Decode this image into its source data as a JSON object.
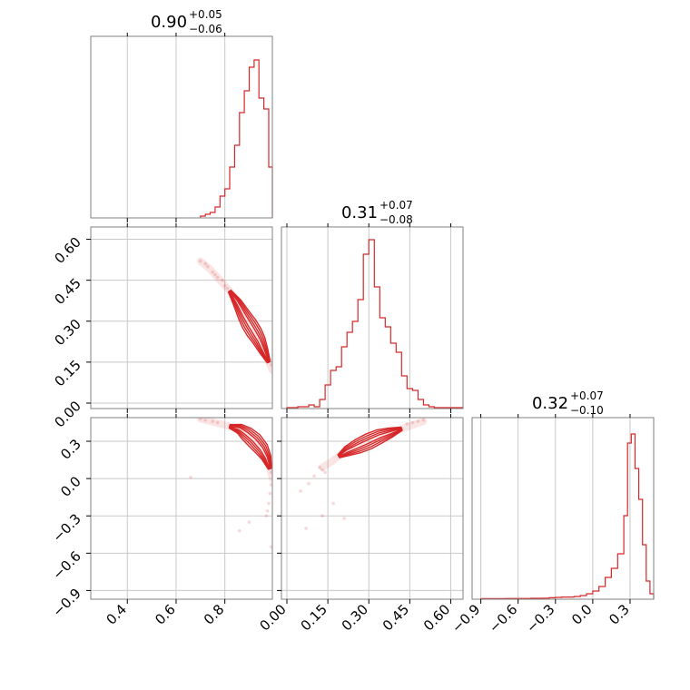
{
  "colors": {
    "series": "#d62728",
    "grid": "#c8c8c8",
    "frame": "#808080"
  },
  "chart_data": {
    "type": "corner",
    "parameters": [
      {
        "median": "0.90",
        "plus": "+0.05",
        "minus": "−0.06",
        "range": [
          0.25,
          0.995
        ],
        "ticks": [
          0.4,
          0.6,
          0.8
        ],
        "tick_labels": [
          "0.4",
          "0.6",
          "0.8"
        ],
        "grid": [
          0.4,
          0.6,
          0.8
        ],
        "hist": {
          "bins": [
            0.7,
            0.72,
            0.74,
            0.76,
            0.78,
            0.8,
            0.82,
            0.84,
            0.86,
            0.88,
            0.9,
            0.92,
            0.94,
            0.96,
            0.98,
            0.995
          ],
          "counts": [
            0.01,
            0.02,
            0.03,
            0.06,
            0.12,
            0.16,
            0.28,
            0.4,
            0.58,
            0.7,
            0.83,
            0.87,
            0.66,
            0.6,
            0.28
          ]
        }
      },
      {
        "median": "0.31",
        "plus": "+0.07",
        "minus": "−0.08",
        "range": [
          -0.02,
          0.645
        ],
        "ticks": [
          0.0,
          0.15,
          0.3,
          0.45,
          0.6
        ],
        "tick_labels": [
          "0.00",
          "0.15",
          "0.30",
          "0.45",
          "0.60"
        ],
        "grid": [
          0.0,
          0.15,
          0.3,
          0.45,
          0.6
        ],
        "hist": {
          "bins": [
            0.0,
            0.02,
            0.04,
            0.06,
            0.08,
            0.1,
            0.12,
            0.14,
            0.16,
            0.18,
            0.2,
            0.22,
            0.24,
            0.26,
            0.28,
            0.3,
            0.32,
            0.34,
            0.36,
            0.38,
            0.4,
            0.42,
            0.44,
            0.46,
            0.48,
            0.5,
            0.52,
            0.54,
            0.56,
            0.58,
            0.6,
            0.62,
            0.645
          ],
          "counts": [
            0.005,
            0.005,
            0.01,
            0.01,
            0.02,
            0.01,
            0.05,
            0.13,
            0.21,
            0.23,
            0.34,
            0.42,
            0.48,
            0.6,
            0.85,
            0.93,
            0.67,
            0.5,
            0.45,
            0.36,
            0.31,
            0.18,
            0.11,
            0.1,
            0.05,
            0.02,
            0.01,
            0.005,
            0.005,
            0.005,
            0.005,
            0.005
          ]
        }
      },
      {
        "median": "0.32",
        "plus": "+0.07",
        "minus": "−0.10",
        "range": [
          -0.97,
          0.49
        ],
        "ticks": [
          -0.9,
          -0.6,
          -0.3,
          0.0,
          0.3
        ],
        "tick_labels": [
          "−0.9",
          "−0.6",
          "−0.3",
          "0.0",
          "0.3"
        ],
        "grid": [
          -0.9,
          -0.6,
          -0.3,
          0.0,
          0.3
        ],
        "hist": {
          "bins": [
            -0.9,
            -0.8,
            -0.7,
            -0.6,
            -0.5,
            -0.4,
            -0.35,
            -0.3,
            -0.25,
            -0.2,
            -0.15,
            -0.1,
            -0.05,
            0.0,
            0.05,
            0.1,
            0.15,
            0.2,
            0.25,
            0.28,
            0.31,
            0.34,
            0.37,
            0.4,
            0.43,
            0.46,
            0.49
          ],
          "counts": [
            0.003,
            0.003,
            0.004,
            0.004,
            0.005,
            0.006,
            0.008,
            0.01,
            0.012,
            0.012,
            0.015,
            0.02,
            0.03,
            0.045,
            0.07,
            0.12,
            0.17,
            0.25,
            0.46,
            0.86,
            0.91,
            0.72,
            0.55,
            0.3,
            0.1,
            0.03
          ]
        }
      }
    ],
    "pairs": [
      {
        "x_param": 0,
        "y_param": 1,
        "curve": [
          [
            0.7,
            0.52
          ],
          [
            0.74,
            0.49
          ],
          [
            0.78,
            0.45
          ],
          [
            0.82,
            0.41
          ],
          [
            0.85,
            0.37
          ],
          [
            0.88,
            0.32
          ],
          [
            0.9,
            0.29
          ],
          [
            0.92,
            0.26
          ],
          [
            0.94,
            0.23
          ],
          [
            0.96,
            0.19
          ],
          [
            0.98,
            0.15
          ],
          [
            0.995,
            0.12
          ]
        ],
        "contour_widths": [
          0.004,
          0.008,
          0.012,
          0.016
        ],
        "contour_span": [
          0.8,
          0.98
        ],
        "scatter": [
          [
            0.7,
            0.52
          ],
          [
            0.72,
            0.51
          ],
          [
            0.73,
            0.5
          ],
          [
            0.75,
            0.48
          ],
          [
            0.76,
            0.47
          ],
          [
            0.77,
            0.46
          ],
          [
            0.79,
            0.45
          ],
          [
            0.8,
            0.43
          ],
          [
            0.81,
            0.42
          ],
          [
            0.99,
            0.14
          ],
          [
            0.985,
            0.16
          ],
          [
            0.97,
            0.18
          ]
        ]
      },
      {
        "x_param": 0,
        "y_param": 2,
        "curve": [
          [
            0.7,
            0.48
          ],
          [
            0.74,
            0.46
          ],
          [
            0.78,
            0.44
          ],
          [
            0.82,
            0.42
          ],
          [
            0.86,
            0.4
          ],
          [
            0.89,
            0.36
          ],
          [
            0.92,
            0.31
          ],
          [
            0.95,
            0.24
          ],
          [
            0.97,
            0.17
          ],
          [
            0.985,
            0.08
          ],
          [
            0.995,
            0.0
          ]
        ],
        "contour_widths": [
          0.01,
          0.02,
          0.03,
          0.04
        ],
        "contour_span": [
          0.79,
          0.99
        ],
        "scatter": [
          [
            0.7,
            0.48
          ],
          [
            0.72,
            0.47
          ],
          [
            0.75,
            0.46
          ],
          [
            0.77,
            0.45
          ],
          [
            0.99,
            0.05
          ],
          [
            0.99,
            -0.05
          ],
          [
            0.985,
            -0.12
          ],
          [
            0.98,
            -0.2
          ],
          [
            0.975,
            -0.26
          ],
          [
            0.97,
            -0.3
          ],
          [
            0.9,
            -0.35
          ],
          [
            0.86,
            -0.42
          ],
          [
            0.66,
            0.01
          ],
          [
            0.99,
            -0.55
          ]
        ]
      },
      {
        "x_param": 1,
        "y_param": 2,
        "curve": [
          [
            0.13,
            0.09
          ],
          [
            0.16,
            0.13
          ],
          [
            0.19,
            0.18
          ],
          [
            0.22,
            0.22
          ],
          [
            0.26,
            0.26
          ],
          [
            0.3,
            0.3
          ],
          [
            0.34,
            0.34
          ],
          [
            0.38,
            0.37
          ],
          [
            0.42,
            0.4
          ],
          [
            0.46,
            0.43
          ],
          [
            0.5,
            0.46
          ]
        ],
        "contour_widths": [
          0.01,
          0.02,
          0.03,
          0.04
        ],
        "contour_span": [
          0.17,
          0.45
        ],
        "scatter": [
          [
            0.13,
            0.07
          ],
          [
            0.12,
            0.09
          ],
          [
            0.14,
            0.05
          ],
          [
            0.1,
            0.02
          ],
          [
            0.08,
            -0.04
          ],
          [
            0.05,
            -0.1
          ],
          [
            0.17,
            -0.2
          ],
          [
            0.13,
            -0.3
          ],
          [
            0.21,
            -0.32
          ],
          [
            0.07,
            -0.4
          ],
          [
            0.48,
            0.46
          ],
          [
            0.5,
            0.47
          ],
          [
            0.46,
            0.45
          ],
          [
            0.44,
            0.44
          ]
        ]
      }
    ]
  }
}
